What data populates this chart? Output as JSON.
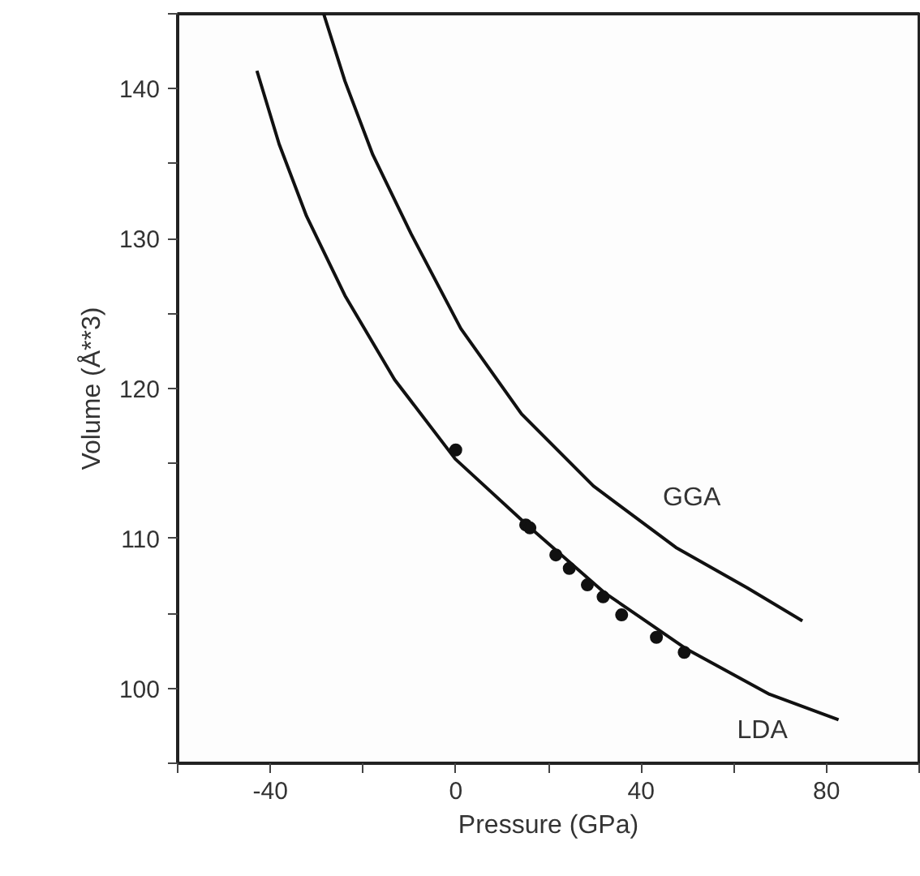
{
  "chart_data": {
    "type": "line",
    "xlabel": "Pressure (GPa)",
    "ylabel": "Volume (Å**3)",
    "xlim": [
      -60,
      100
    ],
    "ylim": [
      95,
      145
    ],
    "xticks": [
      {
        "value": -60,
        "label": null
      },
      -40,
      {
        "value": -20,
        "label": null
      },
      0,
      {
        "value": 20,
        "label": null
      },
      40,
      {
        "value": 60,
        "label": null
      },
      80,
      {
        "value": 100,
        "label": null
      }
    ],
    "yticks": [
      {
        "value": 95,
        "label": null
      },
      100,
      {
        "value": 105,
        "label": null
      },
      110,
      {
        "value": 115,
        "label": null
      },
      120,
      {
        "value": 125,
        "label": null
      },
      130,
      {
        "value": 135,
        "label": null
      },
      140,
      {
        "value": 145,
        "label": null
      }
    ],
    "grid": false,
    "marker": "none",
    "line_style": "solid",
    "series": [
      {
        "name": "GGA",
        "color": "#111111",
        "x": [
          -28.5,
          -23.9,
          -17.9,
          -9.6,
          1.1,
          14.2,
          29.7,
          47.5,
          62.9,
          74.8
        ],
        "values": [
          145,
          140.5,
          135.6,
          130.3,
          124.0,
          118.3,
          113.5,
          109.4,
          106.7,
          104.5
        ]
      },
      {
        "name": "LDA",
        "color": "#111111",
        "x": [
          -42.9,
          -38.1,
          -32.2,
          -23.9,
          -13.2,
          -0.1,
          15.4,
          32.0,
          49.9,
          67.7,
          82.6
        ],
        "values": [
          141.2,
          136.3,
          131.5,
          126.2,
          120.6,
          115.3,
          110.9,
          106.4,
          102.6,
          99.6,
          97.9
        ]
      },
      {
        "type": "scatter",
        "marker": "circle",
        "color": "#111111",
        "x": [
          0,
          15.1,
          16.0,
          21.6,
          24.5,
          28.4,
          31.8,
          35.8,
          43.3,
          49.3
        ],
        "values": [
          115.9,
          110.9,
          110.7,
          108.9,
          108.0,
          106.9,
          106.1,
          104.9,
          103.4,
          102.4
        ]
      }
    ]
  }
}
